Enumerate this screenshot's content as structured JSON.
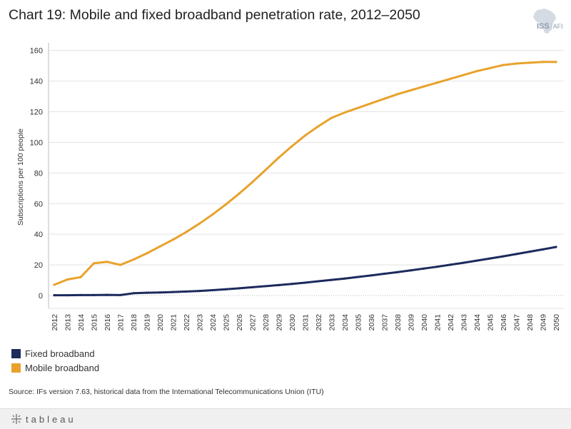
{
  "title": "Chart 19: Mobile and fixed broadband penetration rate, 2012–2050",
  "logo": {
    "text": "ISS",
    "suffix": "AFI",
    "separator": "|"
  },
  "source": "Source: IFs version 7.63, historical data from the International Telecommunications Union (ITU)",
  "footer": {
    "brand": "tableau",
    "icon": "tableau-logo-icon"
  },
  "colors": {
    "fixed": "#1c2a5c",
    "mobile": "#e8a22c",
    "grid": "#e3e3e3",
    "axis": "#bbbbbb"
  },
  "legend": [
    {
      "label": "Fixed broadband",
      "color": "#1c2a5c"
    },
    {
      "label": "Mobile broadband",
      "color": "#e8a22c"
    }
  ],
  "chart_data": {
    "type": "line",
    "title": "Chart 19: Mobile and fixed broadband penetration rate, 2012–2050",
    "xlabel": "",
    "ylabel": "Subscriptions per 100 people",
    "ylim": [
      0,
      165
    ],
    "yticks": [
      0,
      20,
      40,
      60,
      80,
      100,
      120,
      140,
      160
    ],
    "grid": true,
    "legend_position": "bottom-left",
    "x": [
      2012,
      2013,
      2014,
      2015,
      2016,
      2017,
      2018,
      2019,
      2020,
      2021,
      2022,
      2023,
      2024,
      2025,
      2026,
      2027,
      2028,
      2029,
      2030,
      2031,
      2032,
      2033,
      2034,
      2035,
      2036,
      2037,
      2038,
      2039,
      2040,
      2041,
      2042,
      2043,
      2044,
      2045,
      2046,
      2047,
      2048,
      2049,
      2050
    ],
    "series": [
      {
        "name": "Fixed broadband",
        "color": "#1c2a5c",
        "values": [
          0.2,
          0.2,
          0.3,
          0.3,
          0.4,
          0.3,
          1.5,
          1.8,
          2.0,
          2.3,
          2.6,
          3.0,
          3.5,
          4.1,
          4.7,
          5.4,
          6.1,
          6.8,
          7.6,
          8.4,
          9.3,
          10.2,
          11.1,
          12.1,
          13.1,
          14.2,
          15.3,
          16.4,
          17.6,
          18.8,
          20.1,
          21.4,
          22.8,
          24.2,
          25.6,
          27.1,
          28.6,
          30.1,
          31.7
        ]
      },
      {
        "name": "Mobile broadband",
        "color": "#e8a22c",
        "values": [
          7.0,
          10.5,
          12.0,
          21.0,
          22.0,
          20.0,
          23.5,
          27.5,
          32.0,
          36.5,
          41.5,
          47.0,
          53.0,
          59.5,
          66.5,
          74.0,
          82.0,
          90.0,
          97.5,
          104.5,
          110.5,
          116.0,
          119.5,
          122.5,
          125.5,
          128.5,
          131.5,
          134.0,
          136.5,
          139.0,
          141.5,
          144.0,
          146.5,
          148.5,
          150.5,
          151.5,
          152.0,
          152.5,
          152.5
        ]
      }
    ]
  }
}
